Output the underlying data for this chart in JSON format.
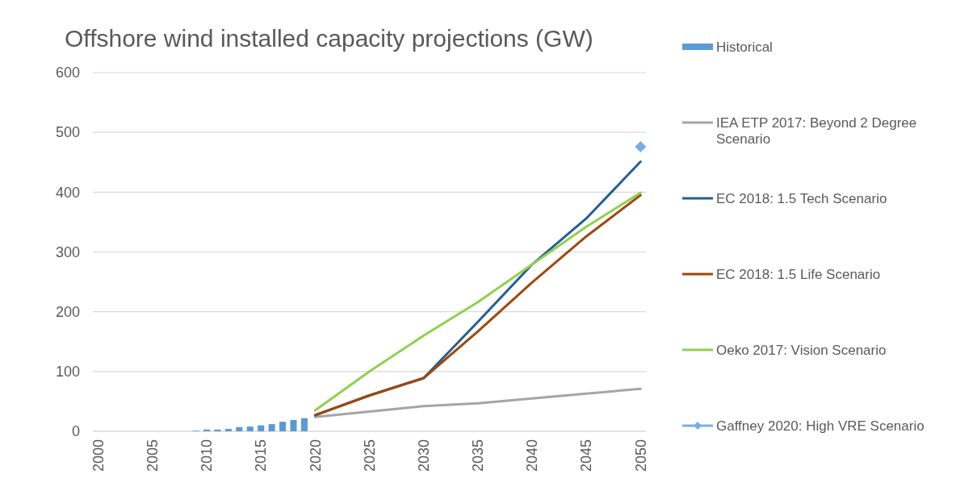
{
  "chart_data": {
    "type": "line",
    "title": "Offshore wind installed capacity projections (GW)",
    "xlim": [
      1999.5,
      2050.5
    ],
    "xticks": [
      2000,
      2005,
      2010,
      2015,
      2020,
      2025,
      2030,
      2035,
      2040,
      2045,
      2050
    ],
    "ylim": [
      0,
      600
    ],
    "yticks": [
      0,
      100,
      200,
      300,
      400,
      500,
      600
    ],
    "grid": "y",
    "legend": "right",
    "series": [
      {
        "name": "Historical",
        "type": "bar",
        "color": "#5b9bd5",
        "x": [
          2009,
          2010,
          2011,
          2012,
          2013,
          2014,
          2015,
          2016,
          2017,
          2018,
          2019
        ],
        "values": [
          1,
          3,
          3,
          4,
          7,
          8,
          10,
          12,
          16,
          19,
          22
        ]
      },
      {
        "name": "IEA ETP 2017: Beyond 2 Degree Scenario",
        "color": "#a5a5a5",
        "x": [
          2020,
          2025,
          2030,
          2035,
          2040,
          2045,
          2050
        ],
        "values": [
          24,
          33,
          42,
          47,
          55,
          63,
          71
        ]
      },
      {
        "name": "EC 2018: 1.5 Tech Scenario",
        "color": "#255e91",
        "x": [
          2020,
          2025,
          2030,
          2035,
          2040,
          2045,
          2050
        ],
        "values": [
          27,
          60,
          89,
          183,
          279,
          356,
          451
        ]
      },
      {
        "name": "EC 2018: 1.5 Life Scenario",
        "color": "#9e480e",
        "x": [
          2020,
          2025,
          2030,
          2035,
          2040,
          2045,
          2050
        ],
        "values": [
          27,
          60,
          89,
          167,
          249,
          326,
          395
        ]
      },
      {
        "name": "Oeko 2017: Vision Scenario",
        "color": "#92d050",
        "x": [
          2020,
          2025,
          2030,
          2035,
          2040,
          2045,
          2050
        ],
        "values": [
          35,
          100,
          160,
          216,
          279,
          342,
          399
        ]
      },
      {
        "name": "Gaffney 2020: High VRE Scenario",
        "type": "scatter",
        "marker": "diamond",
        "color": "#7aaee0",
        "x": [
          2050
        ],
        "values": [
          476
        ]
      }
    ]
  }
}
